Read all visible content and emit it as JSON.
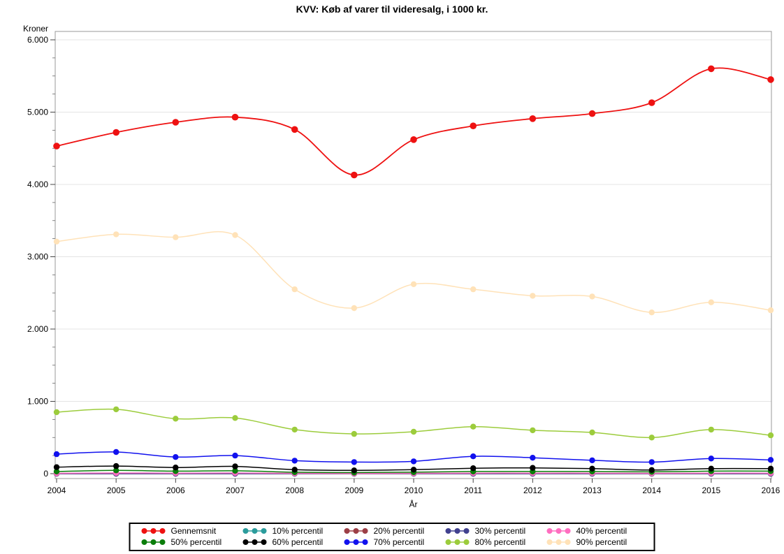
{
  "chart_data": {
    "type": "line",
    "title": "KVV: Køb af varer til videresalg, i 1000 kr.",
    "ylabel": "Kroner",
    "xlabel": "År",
    "x": [
      2004,
      2005,
      2006,
      2007,
      2008,
      2009,
      2010,
      2011,
      2012,
      2013,
      2014,
      2015,
      2016
    ],
    "ylim": [
      0,
      6000
    ],
    "ytick_interval": 1000,
    "ytick_minor_interval": 250,
    "ytick_labels": [
      "0",
      "1.000",
      "2.000",
      "3.000",
      "4.000",
      "5.000",
      "6.000"
    ],
    "grid": "horizontal",
    "legend_position": "bottom",
    "series": [
      {
        "name": "Gennemsnit",
        "color": "#ee1111",
        "values": [
          4530,
          4720,
          4860,
          4930,
          4760,
          4130,
          4620,
          4810,
          4910,
          4980,
          5130,
          5600,
          5450
        ]
      },
      {
        "name": "10% percentil",
        "color": "#2b9c9c",
        "values": [
          0,
          0,
          0,
          0,
          0,
          0,
          0,
          0,
          0,
          0,
          0,
          0,
          0
        ]
      },
      {
        "name": "20% percentil",
        "color": "#9c3f47",
        "values": [
          0,
          0,
          0,
          0,
          0,
          0,
          0,
          0,
          0,
          0,
          0,
          0,
          0
        ]
      },
      {
        "name": "30% percentil",
        "color": "#41418f",
        "values": [
          0,
          0,
          0,
          0,
          0,
          0,
          0,
          0,
          0,
          0,
          0,
          0,
          0
        ]
      },
      {
        "name": "40% percentil",
        "color": "#ff6ec0",
        "values": [
          5,
          10,
          8,
          10,
          5,
          3,
          5,
          8,
          8,
          8,
          5,
          8,
          8
        ]
      },
      {
        "name": "50% percentil",
        "color": "#0a7d0a",
        "values": [
          30,
          45,
          35,
          40,
          20,
          15,
          20,
          30,
          30,
          30,
          25,
          35,
          35
        ]
      },
      {
        "name": "60% percentil",
        "color": "#000000",
        "values": [
          90,
          105,
          85,
          100,
          55,
          45,
          55,
          75,
          80,
          70,
          50,
          70,
          70
        ]
      },
      {
        "name": "70% percentil",
        "color": "#1111ee",
        "values": [
          270,
          300,
          230,
          250,
          180,
          160,
          170,
          240,
          220,
          185,
          160,
          210,
          190
        ]
      },
      {
        "name": "80% percentil",
        "color": "#9ccc3c",
        "values": [
          850,
          890,
          760,
          770,
          610,
          550,
          580,
          650,
          600,
          570,
          500,
          610,
          530
        ]
      },
      {
        "name": "90% percentil",
        "color": "#ffe2b8",
        "values": [
          3210,
          3310,
          3270,
          3300,
          2550,
          2290,
          2620,
          2550,
          2460,
          2450,
          2230,
          2370,
          2260
        ]
      }
    ]
  }
}
